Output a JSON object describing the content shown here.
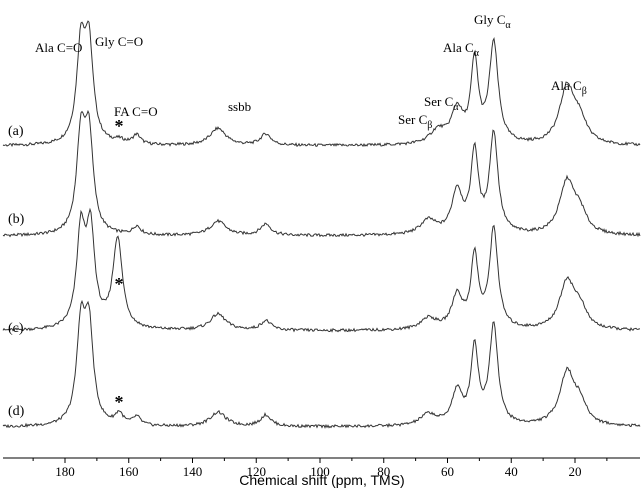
{
  "chart_data": {
    "type": "line",
    "title": "",
    "xlabel": "Chemical shift (ppm, TMS)",
    "ylabel": "",
    "xlim": [
      198,
      5
    ],
    "x_reversed": true,
    "x_ticks": [
      180,
      160,
      140,
      120,
      100,
      80,
      60,
      40,
      20
    ],
    "grid": false,
    "legend": "none",
    "series": [
      {
        "name": "(a)",
        "peaks": [
          {
            "x": 175,
            "height": 1.0,
            "width": 1.6
          },
          {
            "x": 172.5,
            "height": 1.0,
            "width": 1.6
          },
          {
            "x": 163,
            "height": 0.04,
            "width": 2
          },
          {
            "x": 157.5,
            "height": 0.1,
            "width": 1.5
          },
          {
            "x": 132,
            "height": 0.18,
            "width": 3
          },
          {
            "x": 117,
            "height": 0.12,
            "width": 2
          },
          {
            "x": 63,
            "height": 0.14,
            "width": 3
          },
          {
            "x": 57,
            "height": 0.35,
            "width": 2.2
          },
          {
            "x": 51.5,
            "height": 0.85,
            "width": 1.4
          },
          {
            "x": 45.5,
            "height": 1.05,
            "width": 1.7
          },
          {
            "x": 22.5,
            "height": 0.6,
            "width": 2.8
          },
          {
            "x": 18.5,
            "height": 0.22,
            "width": 2.5
          }
        ]
      },
      {
        "name": "(b)",
        "peaks": [
          {
            "x": 175,
            "height": 1.0,
            "width": 1.6
          },
          {
            "x": 172.5,
            "height": 1.0,
            "width": 1.6
          },
          {
            "x": 157.5,
            "height": 0.09,
            "width": 1.5
          },
          {
            "x": 132,
            "height": 0.15,
            "width": 3
          },
          {
            "x": 117,
            "height": 0.12,
            "width": 2
          },
          {
            "x": 66,
            "height": 0.15,
            "width": 3
          },
          {
            "x": 57,
            "height": 0.45,
            "width": 2.0
          },
          {
            "x": 51.5,
            "height": 0.85,
            "width": 1.4
          },
          {
            "x": 45.5,
            "height": 1.05,
            "width": 1.6
          },
          {
            "x": 22.5,
            "height": 0.55,
            "width": 2.8
          },
          {
            "x": 18.5,
            "height": 0.2,
            "width": 2.5
          }
        ]
      },
      {
        "name": "(c)",
        "peaks": [
          {
            "x": 175,
            "height": 1.0,
            "width": 1.6
          },
          {
            "x": 172,
            "height": 1.0,
            "width": 1.6
          },
          {
            "x": 163.5,
            "height": 0.95,
            "width": 1.8
          },
          {
            "x": 132,
            "height": 0.17,
            "width": 3
          },
          {
            "x": 117,
            "height": 0.1,
            "width": 2
          },
          {
            "x": 66,
            "height": 0.12,
            "width": 3
          },
          {
            "x": 57,
            "height": 0.35,
            "width": 2.0
          },
          {
            "x": 51.5,
            "height": 0.75,
            "width": 1.4
          },
          {
            "x": 45.5,
            "height": 1.05,
            "width": 1.6
          },
          {
            "x": 22.5,
            "height": 0.5,
            "width": 2.8
          },
          {
            "x": 18.5,
            "height": 0.2,
            "width": 2.5
          }
        ]
      },
      {
        "name": "(d)",
        "peaks": [
          {
            "x": 175,
            "height": 1.0,
            "width": 1.6
          },
          {
            "x": 172.5,
            "height": 1.0,
            "width": 1.6
          },
          {
            "x": 163,
            "height": 0.12,
            "width": 1.5
          },
          {
            "x": 157.5,
            "height": 0.09,
            "width": 1.5
          },
          {
            "x": 132,
            "height": 0.15,
            "width": 3
          },
          {
            "x": 117,
            "height": 0.12,
            "width": 2
          },
          {
            "x": 66,
            "height": 0.12,
            "width": 3
          },
          {
            "x": 57,
            "height": 0.35,
            "width": 2.0
          },
          {
            "x": 51.5,
            "height": 0.8,
            "width": 1.4
          },
          {
            "x": 45.5,
            "height": 1.05,
            "width": 1.6
          },
          {
            "x": 22.5,
            "height": 0.55,
            "width": 2.8
          },
          {
            "x": 18.5,
            "height": 0.2,
            "width": 2.5
          }
        ]
      }
    ],
    "annotations": [
      {
        "text": "Ala C=O",
        "trace": "(a)"
      },
      {
        "text": "Gly C=O",
        "trace": "(a)"
      },
      {
        "text": "FA C=O",
        "trace": "(a)"
      },
      {
        "text": "ssbb",
        "trace": "(a)"
      },
      {
        "text": "Ser Cβ",
        "trace": "(a)"
      },
      {
        "text": "Ser Cα",
        "trace": "(a)"
      },
      {
        "text": "Ala Cα",
        "trace": "(a)"
      },
      {
        "text": "Gly Cα",
        "trace": "(a)"
      },
      {
        "text": "Ala Cβ",
        "trace": "(a)"
      },
      {
        "text": "*",
        "trace": "(a)"
      },
      {
        "text": "*",
        "trace": "(c)"
      },
      {
        "text": "*",
        "trace": "(d)"
      }
    ]
  }
}
